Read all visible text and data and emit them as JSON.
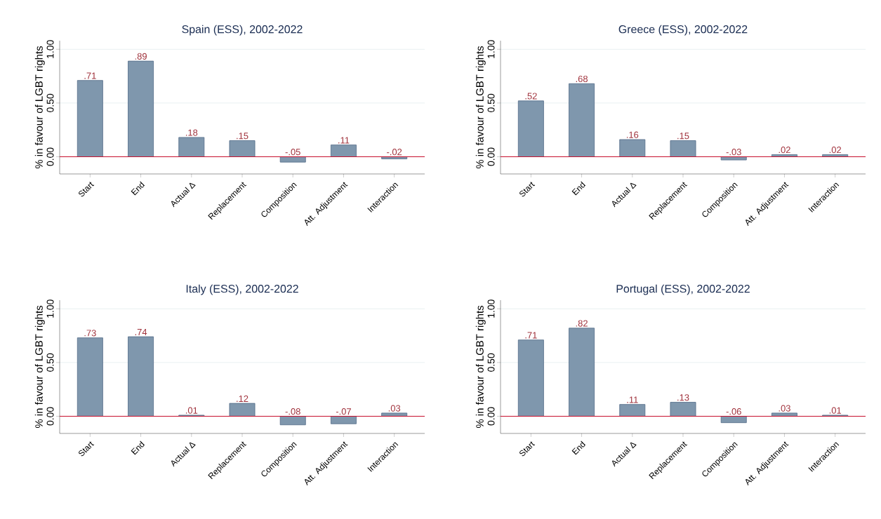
{
  "chart_data": [
    {
      "type": "bar",
      "title": "Spain (ESS), 2002-2022",
      "ylabel": "% in favour of LGBT rights",
      "categories": [
        "Start",
        "End",
        "Actual Δ",
        "Replacement",
        "Composition",
        "Att. Adjustment",
        "Interaction"
      ],
      "values": [
        0.71,
        0.89,
        0.18,
        0.15,
        -0.05,
        0.11,
        -0.02
      ],
      "value_labels": [
        ".71",
        ".89",
        ".18",
        ".15",
        "-.05",
        ".11",
        "-.02"
      ],
      "color": "#7f97ad",
      "ylim": [
        -0.16,
        1.08
      ],
      "yticks": [
        {
          "value": 0,
          "label": "0.00"
        },
        {
          "value": 0.5,
          "label": "0.50"
        },
        {
          "value": 1,
          "label": "1.00"
        }
      ],
      "grid": "y",
      "ref_lines": [
        {
          "axis": "y",
          "value": 0,
          "color": "#c8102e"
        }
      ]
    },
    {
      "type": "bar",
      "title": "Greece (ESS), 2002-2022",
      "ylabel": "% in favour of LGBT rights",
      "categories": [
        "Start",
        "End",
        "Actual Δ",
        "Replacement",
        "Composition",
        "Att. Adjustment",
        "Interaction"
      ],
      "values": [
        0.52,
        0.68,
        0.16,
        0.15,
        -0.03,
        0.02,
        0.02
      ],
      "value_labels": [
        ".52",
        ".68",
        ".16",
        ".15",
        "-.03",
        ".02",
        ".02"
      ],
      "color": "#7f97ad",
      "ylim": [
        -0.16,
        1.08
      ],
      "yticks": [
        {
          "value": 0,
          "label": "0.00"
        },
        {
          "value": 0.5,
          "label": "0.50"
        },
        {
          "value": 1,
          "label": "1.00"
        }
      ],
      "grid": "y",
      "ref_lines": [
        {
          "axis": "y",
          "value": 0,
          "color": "#c8102e"
        }
      ]
    },
    {
      "type": "bar",
      "title": "Italy (ESS), 2002-2022",
      "ylabel": "% in favour of LGBT rights",
      "categories": [
        "Start",
        "End",
        "Actual Δ",
        "Replacement",
        "Composition",
        "Att. Adjustment",
        "Interaction"
      ],
      "values": [
        0.73,
        0.74,
        0.01,
        0.12,
        -0.08,
        -0.07,
        0.03
      ],
      "value_labels": [
        ".73",
        ".74",
        ".01",
        ".12",
        "-.08",
        "-.07",
        ".03"
      ],
      "color": "#7f97ad",
      "ylim": [
        -0.16,
        1.08
      ],
      "yticks": [
        {
          "value": 0,
          "label": "0.00"
        },
        {
          "value": 0.5,
          "label": "0.50"
        },
        {
          "value": 1,
          "label": "1.00"
        }
      ],
      "grid": "y",
      "ref_lines": [
        {
          "axis": "y",
          "value": 0,
          "color": "#c8102e"
        }
      ]
    },
    {
      "type": "bar",
      "title": "Portugal (ESS), 2002-2022",
      "ylabel": "% in favour of LGBT rights",
      "categories": [
        "Start",
        "End",
        "Actual Δ",
        "Replacement",
        "Composition",
        "Att. Adjustment",
        "Interaction"
      ],
      "values": [
        0.71,
        0.82,
        0.11,
        0.13,
        -0.06,
        0.03,
        0.01
      ],
      "value_labels": [
        ".71",
        ".82",
        ".11",
        ".13",
        "-.06",
        ".03",
        ".01"
      ],
      "color": "#7f97ad",
      "ylim": [
        -0.16,
        1.08
      ],
      "yticks": [
        {
          "value": 0,
          "label": "0.00"
        },
        {
          "value": 0.5,
          "label": "0.50"
        },
        {
          "value": 1,
          "label": "1.00"
        }
      ],
      "grid": "y",
      "ref_lines": [
        {
          "axis": "y",
          "value": 0,
          "color": "#c8102e"
        }
      ]
    }
  ]
}
